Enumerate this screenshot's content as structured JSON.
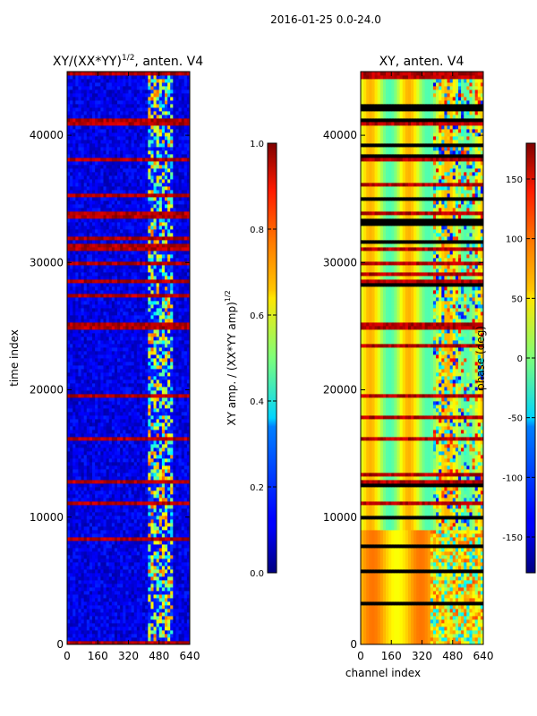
{
  "figure": {
    "suptitle": "2016-01-25 0.0-24.0"
  },
  "chart_data": [
    {
      "type": "heatmap",
      "title": "XY/(XX*YY)^1/2, anten. V4",
      "title_main": "XY/(XX*YY)",
      "title_exp": "1/2",
      "title_tail": ", anten. V4",
      "xlabel": "",
      "ylabel": "time index",
      "xlim": [
        0,
        640
      ],
      "ylim": [
        0,
        45000
      ],
      "xticks": [
        "0",
        "160",
        "320",
        "480",
        "640"
      ],
      "yticks": [
        "0",
        "10000",
        "20000",
        "30000",
        "40000"
      ],
      "colorbar": {
        "label_main": "XY amp. / (XX*YY amp)",
        "label_exp": "1/2",
        "range": [
          0.0,
          1.0
        ],
        "ticks": [
          "0.0",
          "0.2",
          "0.4",
          "0.6",
          "0.8",
          "1.0"
        ],
        "colormap": "jet"
      },
      "description_values": {
        "background_amplitude": 0.05,
        "noisy_band_channels": [
          420,
          560
        ],
        "high_amplitude_rows_approx": [
          9000,
          11200,
          12800,
          16200,
          19600,
          25300,
          28500,
          30000,
          31000,
          34000,
          38000,
          41000,
          44800
        ]
      }
    },
    {
      "type": "heatmap",
      "title": "XY, anten. V4",
      "xlabel": "channel index",
      "ylabel": "",
      "xlim": [
        0,
        640
      ],
      "ylim": [
        0,
        45000
      ],
      "xticks": [
        "0",
        "160",
        "320",
        "480",
        "640"
      ],
      "yticks": [
        "0",
        "10000",
        "20000",
        "30000",
        "40000"
      ],
      "colorbar": {
        "label": "phase (deg)",
        "range": [
          -180,
          180
        ],
        "ticks": [
          "-150",
          "-100",
          "-50",
          "0",
          "50",
          "100",
          "150"
        ],
        "colormap": "jet"
      },
      "description_values": {
        "low_region_time_range": [
          0,
          9000
        ],
        "low_region_phase_deg": 120,
        "upper_region_phase_deg": 20
      }
    }
  ]
}
